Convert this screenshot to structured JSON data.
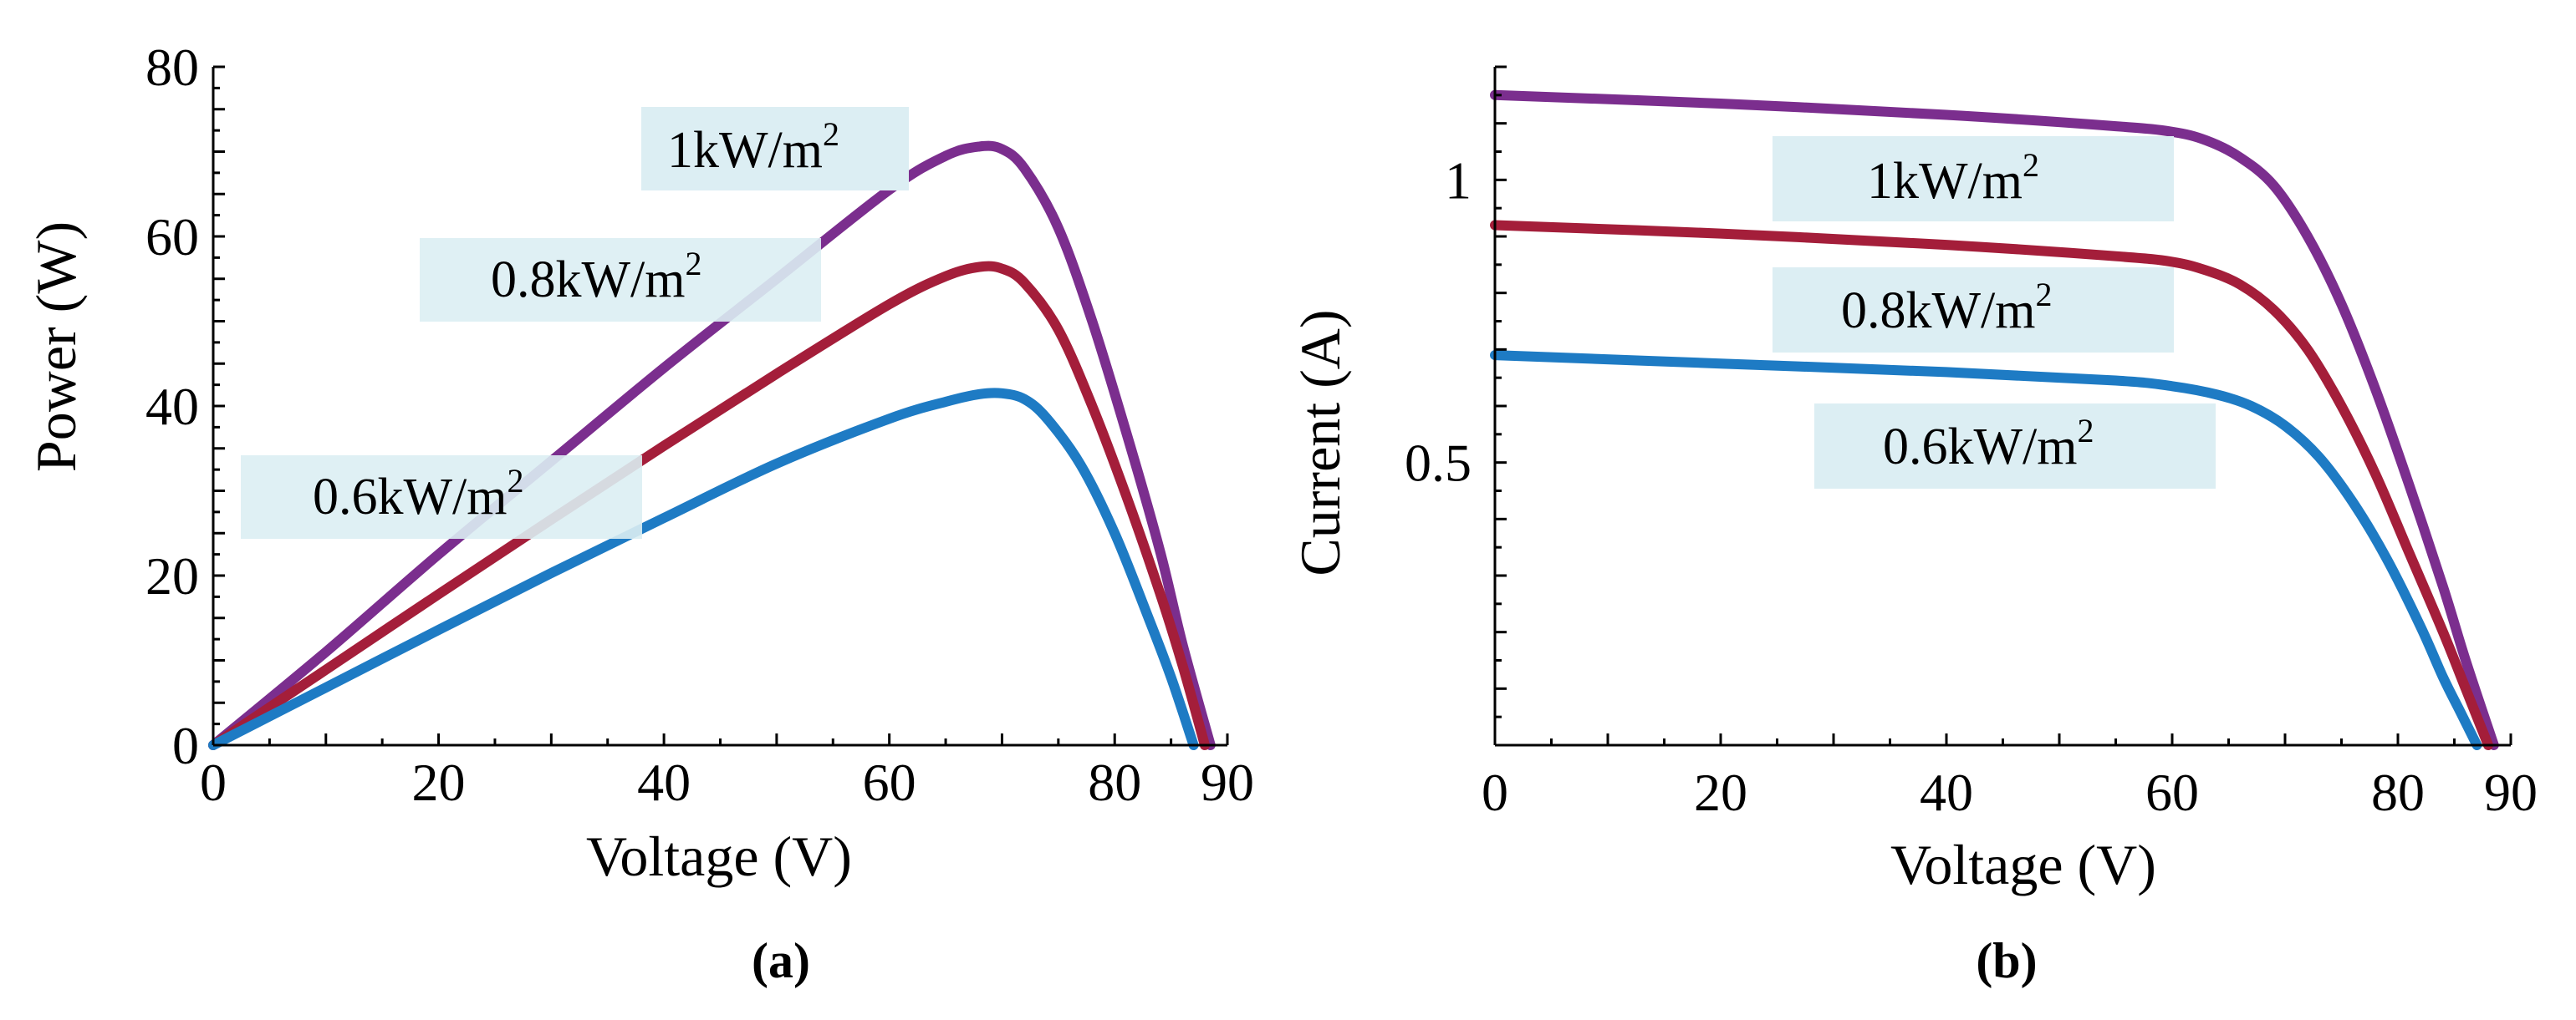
{
  "colors": {
    "1kW": "#7B2E8E",
    "0.8kW": "#A41E3A",
    "0.6kW": "#1E7BC4",
    "label_box": "#DCEEF3",
    "axis": "#000000"
  },
  "chart_data": [
    {
      "type": "line",
      "panel": "(a)",
      "title": "",
      "xlabel": "Voltage (V)",
      "ylabel": "Power (W)",
      "xlim": [
        0,
        90
      ],
      "ylim": [
        0,
        80
      ],
      "xticks": [
        0,
        20,
        40,
        60,
        80,
        90
      ],
      "xtick_labels": [
        "0",
        "20",
        "40",
        "60",
        "80",
        "90"
      ],
      "yticks": [
        0,
        20,
        40,
        60,
        80
      ],
      "ytick_labels": [
        "0",
        "20",
        "40",
        "60",
        "80"
      ],
      "series": [
        {
          "name": "1kW/m2",
          "color_key": "1kW",
          "x": [
            0,
            10,
            20,
            30,
            40,
            50,
            60,
            65,
            68,
            70,
            72,
            75,
            78,
            81,
            84,
            86,
            88.5
          ],
          "values": [
            0,
            11,
            22.5,
            33.5,
            44.5,
            55,
            65.5,
            69.5,
            70.6,
            70.3,
            68,
            61,
            50,
            37,
            23,
            12,
            0
          ]
        },
        {
          "name": "0.8kW/m2",
          "color_key": "0.8kW",
          "x": [
            0,
            10,
            20,
            30,
            40,
            50,
            60,
            65,
            68,
            70,
            72,
            75,
            78,
            81,
            84,
            86,
            88
          ],
          "values": [
            0,
            8.9,
            17.8,
            26.6,
            35.3,
            43.8,
            52,
            55.3,
            56.4,
            56.2,
            54.5,
            49,
            40,
            29.5,
            18,
            9.5,
            0
          ]
        },
        {
          "name": "0.6kW/m2",
          "color_key": "0.6kW",
          "x": [
            0,
            10,
            20,
            30,
            40,
            50,
            60,
            65,
            68,
            70,
            72,
            74,
            77,
            80,
            83,
            85,
            87
          ],
          "values": [
            0,
            6.8,
            13.6,
            20.3,
            26.8,
            33.2,
            38.5,
            40.5,
            41.4,
            41.5,
            40.8,
            38.5,
            33,
            25,
            15,
            8,
            0
          ]
        }
      ],
      "annotations": [
        {
          "text": "1kW/m",
          "sup": "2",
          "series": "1kW/m2"
        },
        {
          "text": "0.8kW/m",
          "sup": "2",
          "series": "0.8kW/m2"
        },
        {
          "text": "0.6kW/m",
          "sup": "2",
          "series": "0.6kW/m2"
        }
      ]
    },
    {
      "type": "line",
      "panel": "(b)",
      "title": "",
      "xlabel": "Voltage (V)",
      "ylabel": "Current (A)",
      "xlim": [
        0,
        90
      ],
      "ylim": [
        0,
        1.2
      ],
      "xticks": [
        0,
        20,
        40,
        60,
        80,
        90
      ],
      "xtick_labels": [
        "0",
        "20",
        "40",
        "60",
        "80",
        "90"
      ],
      "yticks": [
        0.5,
        1
      ],
      "ytick_labels": [
        "0.5",
        "1"
      ],
      "series": [
        {
          "name": "1kW/m2",
          "color_key": "1kW",
          "x": [
            0,
            20,
            40,
            55,
            60,
            63,
            66,
            69,
            72,
            75,
            78,
            81,
            84,
            86,
            88.5
          ],
          "values": [
            1.15,
            1.135,
            1.115,
            1.095,
            1.085,
            1.07,
            1.04,
            0.99,
            0.9,
            0.78,
            0.63,
            0.46,
            0.28,
            0.15,
            0
          ]
        },
        {
          "name": "0.8kW/m2",
          "color_key": "0.8kW",
          "x": [
            0,
            20,
            40,
            55,
            60,
            63,
            66,
            69,
            72,
            75,
            78,
            81,
            84,
            86,
            88
          ],
          "values": [
            0.92,
            0.905,
            0.885,
            0.865,
            0.855,
            0.84,
            0.815,
            0.77,
            0.7,
            0.6,
            0.48,
            0.34,
            0.2,
            0.1,
            0
          ]
        },
        {
          "name": "0.6kW/m2",
          "color_key": "0.6kW",
          "x": [
            0,
            20,
            40,
            55,
            60,
            64,
            67,
            70,
            73,
            76,
            79,
            82,
            84,
            85.5,
            87
          ],
          "values": [
            0.69,
            0.675,
            0.66,
            0.645,
            0.635,
            0.62,
            0.6,
            0.565,
            0.51,
            0.43,
            0.33,
            0.21,
            0.12,
            0.06,
            0
          ]
        }
      ],
      "annotations": [
        {
          "text": "1kW/m",
          "sup": "2",
          "series": "1kW/m2"
        },
        {
          "text": "0.8kW/m",
          "sup": "2",
          "series": "0.8kW/m2"
        },
        {
          "text": "0.6kW/m",
          "sup": "2",
          "series": "0.6kW/m2"
        }
      ]
    }
  ]
}
